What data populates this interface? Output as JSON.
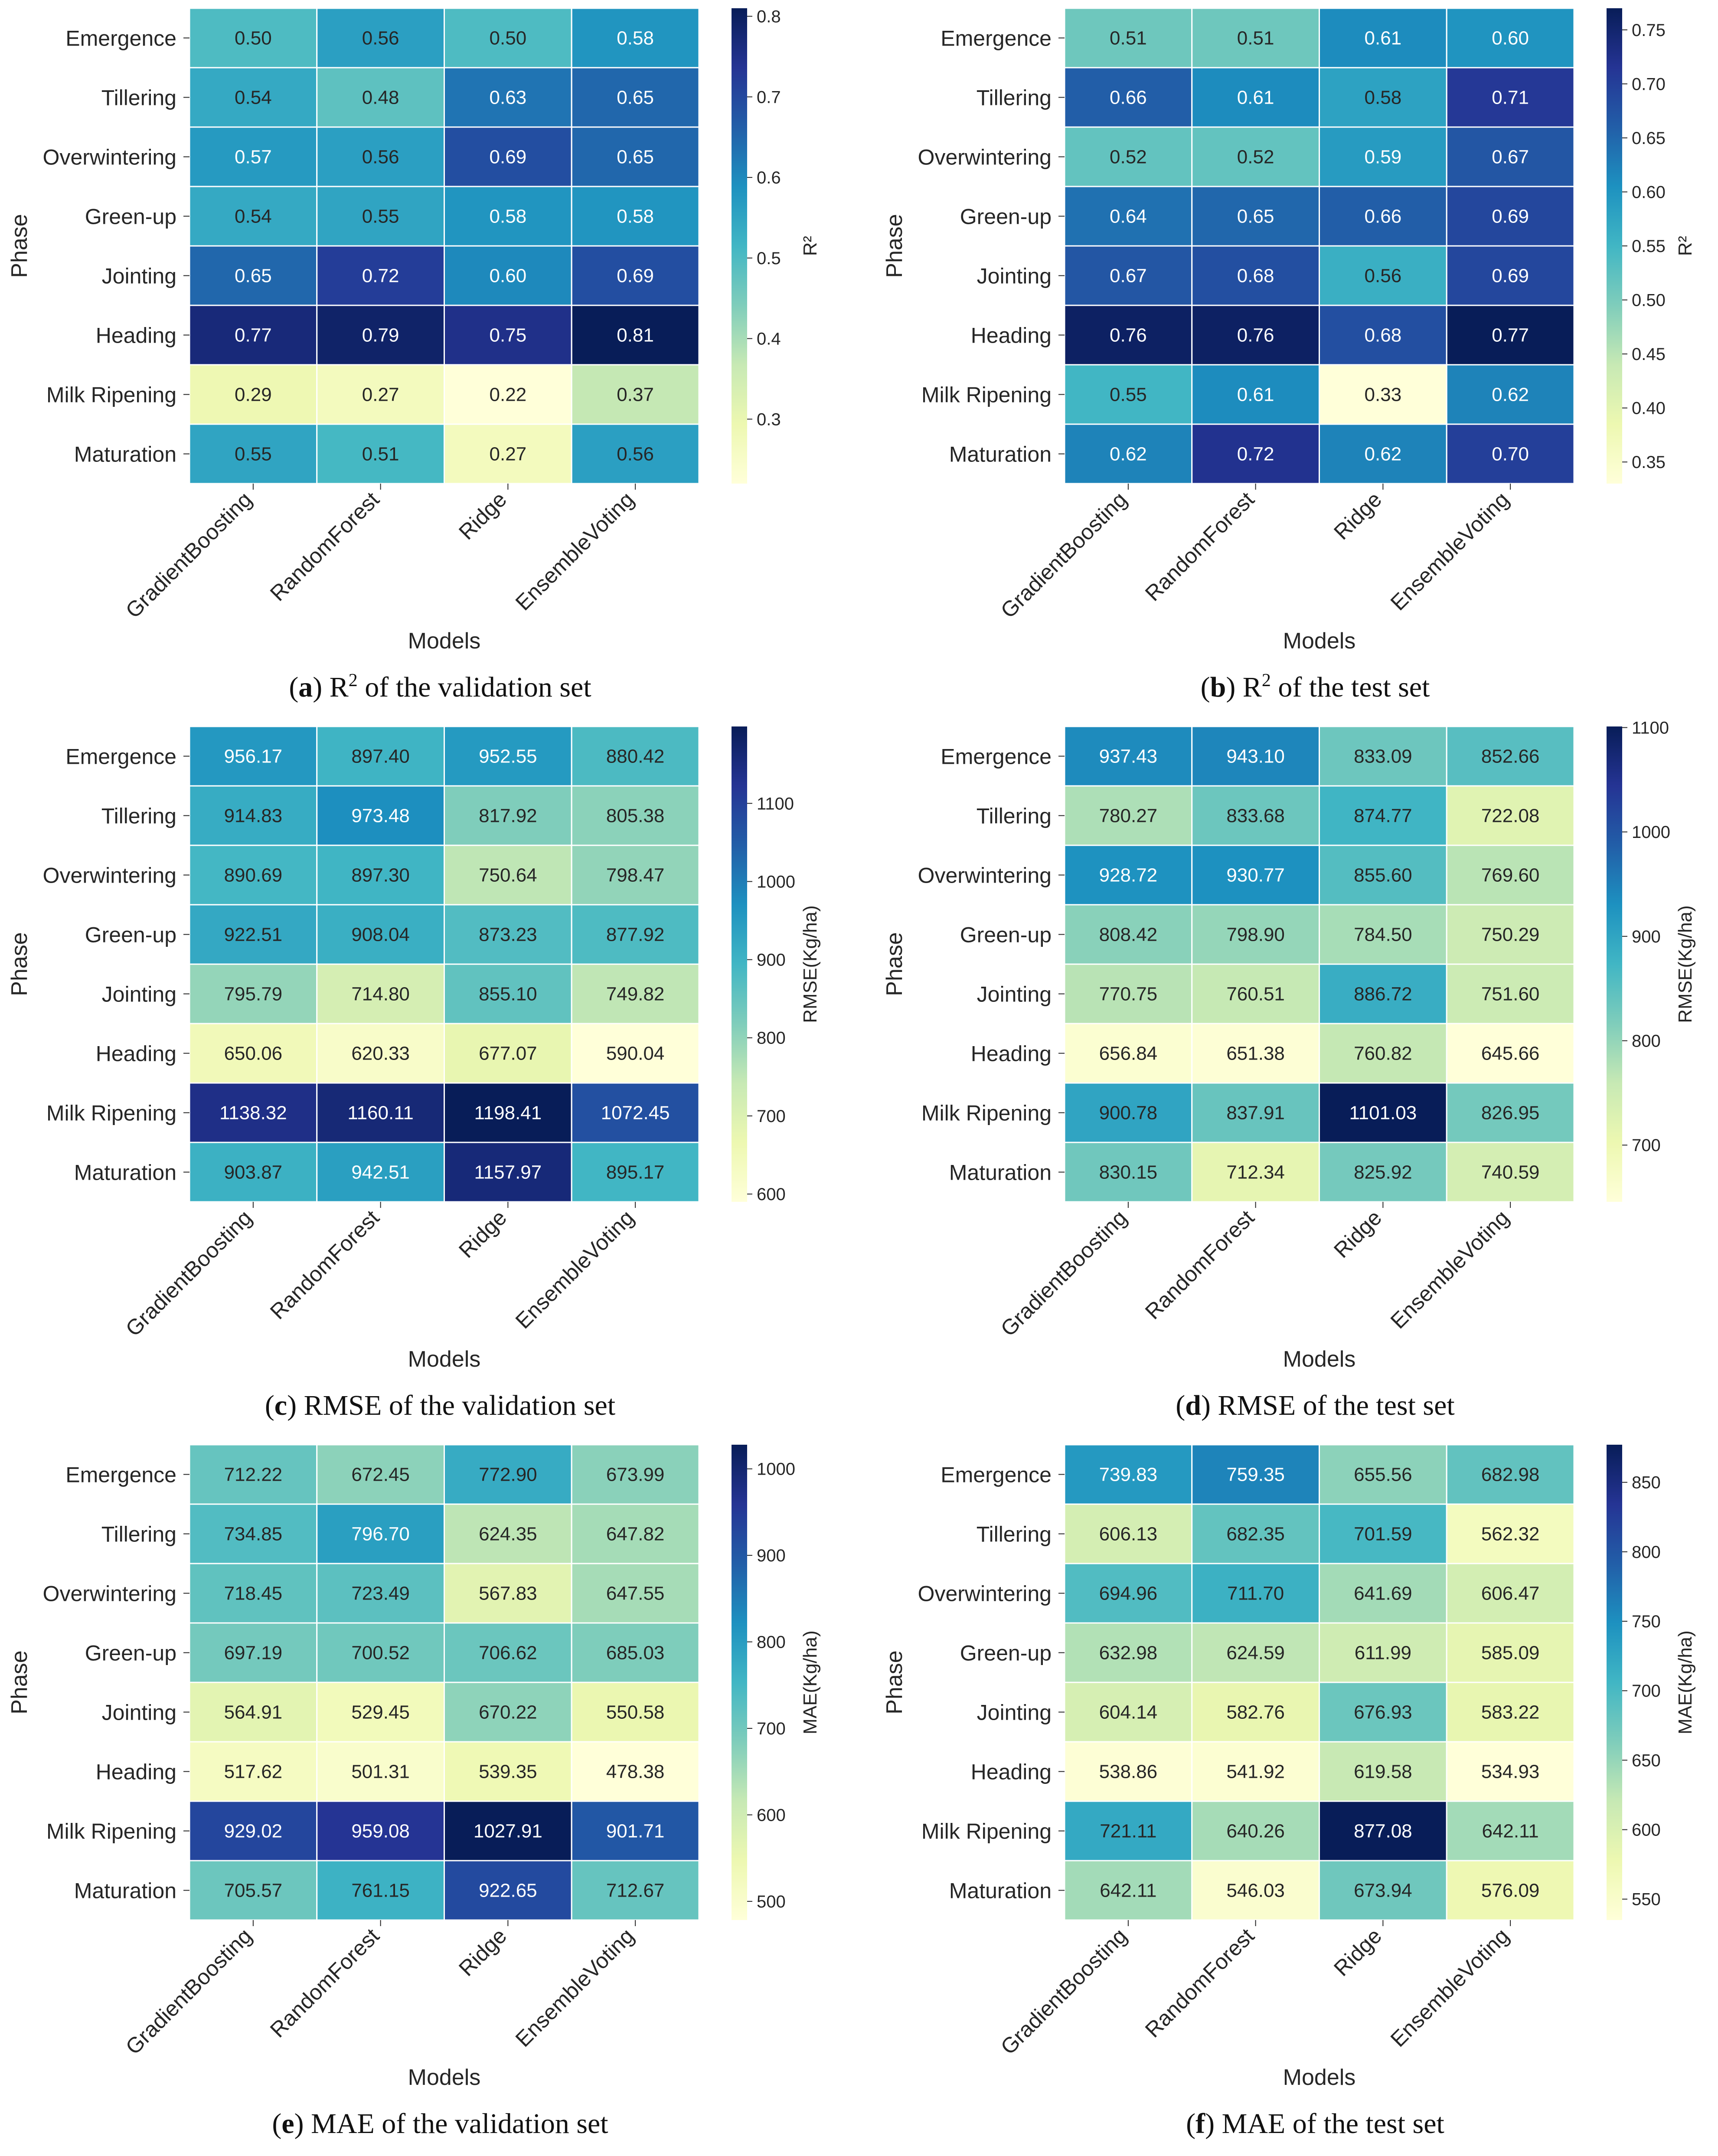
{
  "figure": {
    "colors": [
      "#ffffd9",
      "#edf8b1",
      "#c7e9b4",
      "#7fcdbb",
      "#41b6c4",
      "#1d91c0",
      "#225ea8",
      "#253494",
      "#081d58"
    ],
    "x_categories": [
      "GradientBoosting",
      "RandomForest",
      "Ridge",
      "EnsembleVoting"
    ],
    "y_categories": [
      "Emergence",
      "Tillering",
      "Overwintering",
      "Green-up",
      "Jointing",
      "Heading",
      "Milk Ripening",
      "Maturation"
    ]
  },
  "chart_data": [
    {
      "type": "heatmap",
      "panel_letter": "a",
      "caption_sup": "2",
      "caption_prefix": "R",
      "caption_rest": " of the validation set",
      "xlabel": "Models",
      "ylabel": "Phase",
      "colorbar_label": "R²",
      "colorbar_ticks": [
        "0.3",
        "0.4",
        "0.5",
        "0.6",
        "0.7",
        "0.8"
      ],
      "vmin": 0.22,
      "vmax": 0.81,
      "values": [
        [
          0.5,
          0.56,
          0.5,
          0.58
        ],
        [
          0.54,
          0.48,
          0.63,
          0.65
        ],
        [
          0.57,
          0.56,
          0.69,
          0.65
        ],
        [
          0.54,
          0.55,
          0.58,
          0.58
        ],
        [
          0.65,
          0.72,
          0.6,
          0.69
        ],
        [
          0.77,
          0.79,
          0.75,
          0.81
        ],
        [
          0.29,
          0.27,
          0.22,
          0.37
        ],
        [
          0.55,
          0.51,
          0.27,
          0.56
        ]
      ],
      "labels": [
        [
          "0.50",
          "0.56",
          "0.50",
          "0.58"
        ],
        [
          "0.54",
          "0.48",
          "0.63",
          "0.65"
        ],
        [
          "0.57",
          "0.56",
          "0.69",
          "0.65"
        ],
        [
          "0.54",
          "0.55",
          "0.58",
          "0.58"
        ],
        [
          "0.65",
          "0.72",
          "0.60",
          "0.69"
        ],
        [
          "0.77",
          "0.79",
          "0.75",
          "0.81"
        ],
        [
          "0.29",
          "0.27",
          "0.22",
          "0.37"
        ],
        [
          "0.55",
          "0.51",
          "0.27",
          "0.56"
        ]
      ]
    },
    {
      "type": "heatmap",
      "panel_letter": "b",
      "caption_sup": "2",
      "caption_prefix": "R",
      "caption_rest": " of the test set",
      "xlabel": "Models",
      "ylabel": "Phase",
      "colorbar_label": "R²",
      "colorbar_ticks": [
        "0.35",
        "0.40",
        "0.45",
        "0.50",
        "0.55",
        "0.60",
        "0.65",
        "0.70",
        "0.75"
      ],
      "vmin": 0.33,
      "vmax": 0.77,
      "values": [
        [
          0.51,
          0.51,
          0.61,
          0.6
        ],
        [
          0.66,
          0.61,
          0.58,
          0.71
        ],
        [
          0.52,
          0.52,
          0.59,
          0.67
        ],
        [
          0.64,
          0.65,
          0.66,
          0.69
        ],
        [
          0.67,
          0.68,
          0.56,
          0.69
        ],
        [
          0.76,
          0.76,
          0.68,
          0.77
        ],
        [
          0.55,
          0.61,
          0.33,
          0.62
        ],
        [
          0.62,
          0.72,
          0.62,
          0.7
        ]
      ],
      "labels": [
        [
          "0.51",
          "0.51",
          "0.61",
          "0.60"
        ],
        [
          "0.66",
          "0.61",
          "0.58",
          "0.71"
        ],
        [
          "0.52",
          "0.52",
          "0.59",
          "0.67"
        ],
        [
          "0.64",
          "0.65",
          "0.66",
          "0.69"
        ],
        [
          "0.67",
          "0.68",
          "0.56",
          "0.69"
        ],
        [
          "0.76",
          "0.76",
          "0.68",
          "0.77"
        ],
        [
          "0.55",
          "0.61",
          "0.33",
          "0.62"
        ],
        [
          "0.62",
          "0.72",
          "0.62",
          "0.70"
        ]
      ]
    },
    {
      "type": "heatmap",
      "panel_letter": "c",
      "caption_sup": "",
      "caption_prefix": "RMSE",
      "caption_rest": " of the validation set",
      "xlabel": "Models",
      "ylabel": "Phase",
      "colorbar_label": "RMSE(Kg/ha)",
      "colorbar_ticks": [
        "600",
        "700",
        "800",
        "900",
        "1000",
        "1100"
      ],
      "vmin": 590.04,
      "vmax": 1198.41,
      "values": [
        [
          956.17,
          897.4,
          952.55,
          880.42
        ],
        [
          914.83,
          973.48,
          817.92,
          805.38
        ],
        [
          890.69,
          897.3,
          750.64,
          798.47
        ],
        [
          922.51,
          908.04,
          873.23,
          877.92
        ],
        [
          795.79,
          714.8,
          855.1,
          749.82
        ],
        [
          650.06,
          620.33,
          677.07,
          590.04
        ],
        [
          1138.32,
          1160.11,
          1198.41,
          1072.45
        ],
        [
          903.87,
          942.51,
          1157.97,
          895.17
        ]
      ],
      "labels": [
        [
          "956.17",
          "897.40",
          "952.55",
          "880.42"
        ],
        [
          "914.83",
          "973.48",
          "817.92",
          "805.38"
        ],
        [
          "890.69",
          "897.30",
          "750.64",
          "798.47"
        ],
        [
          "922.51",
          "908.04",
          "873.23",
          "877.92"
        ],
        [
          "795.79",
          "714.80",
          "855.10",
          "749.82"
        ],
        [
          "650.06",
          "620.33",
          "677.07",
          "590.04"
        ],
        [
          "1138.32",
          "1160.11",
          "1198.41",
          "1072.45"
        ],
        [
          "903.87",
          "942.51",
          "1157.97",
          "895.17"
        ]
      ]
    },
    {
      "type": "heatmap",
      "panel_letter": "d",
      "caption_sup": "",
      "caption_prefix": "RMSE",
      "caption_rest": " of the test set",
      "xlabel": "Models",
      "ylabel": "Phase",
      "colorbar_label": "RMSE(Kg/ha)",
      "colorbar_ticks": [
        "700",
        "800",
        "900",
        "1000",
        "1100"
      ],
      "vmin": 645.66,
      "vmax": 1101.03,
      "values": [
        [
          937.43,
          943.1,
          833.09,
          852.66
        ],
        [
          780.27,
          833.68,
          874.77,
          722.08
        ],
        [
          928.72,
          930.77,
          855.6,
          769.6
        ],
        [
          808.42,
          798.9,
          784.5,
          750.29
        ],
        [
          770.75,
          760.51,
          886.72,
          751.6
        ],
        [
          656.84,
          651.38,
          760.82,
          645.66
        ],
        [
          900.78,
          837.91,
          1101.03,
          826.95
        ],
        [
          830.15,
          712.34,
          825.92,
          740.59
        ]
      ],
      "labels": [
        [
          "937.43",
          "943.10",
          "833.09",
          "852.66"
        ],
        [
          "780.27",
          "833.68",
          "874.77",
          "722.08"
        ],
        [
          "928.72",
          "930.77",
          "855.60",
          "769.60"
        ],
        [
          "808.42",
          "798.90",
          "784.50",
          "750.29"
        ],
        [
          "770.75",
          "760.51",
          "886.72",
          "751.60"
        ],
        [
          "656.84",
          "651.38",
          "760.82",
          "645.66"
        ],
        [
          "900.78",
          "837.91",
          "1101.03",
          "826.95"
        ],
        [
          "830.15",
          "712.34",
          "825.92",
          "740.59"
        ]
      ]
    },
    {
      "type": "heatmap",
      "panel_letter": "e",
      "caption_sup": "",
      "caption_prefix": "MAE",
      "caption_rest": " of the validation set",
      "xlabel": "Models",
      "ylabel": "Phase",
      "colorbar_label": "MAE(Kg/ha)",
      "colorbar_ticks": [
        "500",
        "600",
        "700",
        "800",
        "900",
        "1000"
      ],
      "vmin": 478.38,
      "vmax": 1027.91,
      "values": [
        [
          712.22,
          672.45,
          772.9,
          673.99
        ],
        [
          734.85,
          796.7,
          624.35,
          647.82
        ],
        [
          718.45,
          723.49,
          567.83,
          647.55
        ],
        [
          697.19,
          700.52,
          706.62,
          685.03
        ],
        [
          564.91,
          529.45,
          670.22,
          550.58
        ],
        [
          517.62,
          501.31,
          539.35,
          478.38
        ],
        [
          929.02,
          959.08,
          1027.91,
          901.71
        ],
        [
          705.57,
          761.15,
          922.65,
          712.67
        ]
      ],
      "labels": [
        [
          "712.22",
          "672.45",
          "772.90",
          "673.99"
        ],
        [
          "734.85",
          "796.70",
          "624.35",
          "647.82"
        ],
        [
          "718.45",
          "723.49",
          "567.83",
          "647.55"
        ],
        [
          "697.19",
          "700.52",
          "706.62",
          "685.03"
        ],
        [
          "564.91",
          "529.45",
          "670.22",
          "550.58"
        ],
        [
          "517.62",
          "501.31",
          "539.35",
          "478.38"
        ],
        [
          "929.02",
          "959.08",
          "1027.91",
          "901.71"
        ],
        [
          "705.57",
          "761.15",
          "922.65",
          "712.67"
        ]
      ]
    },
    {
      "type": "heatmap",
      "panel_letter": "f",
      "caption_sup": "",
      "caption_prefix": "MAE",
      "caption_rest": " of the test set",
      "xlabel": "Models",
      "ylabel": "Phase",
      "colorbar_label": "MAE(Kg/ha)",
      "colorbar_ticks": [
        "550",
        "600",
        "650",
        "700",
        "750",
        "800",
        "850"
      ],
      "vmin": 534.93,
      "vmax": 877.08,
      "values": [
        [
          739.83,
          759.35,
          655.56,
          682.98
        ],
        [
          606.13,
          682.35,
          701.59,
          562.32
        ],
        [
          694.96,
          711.7,
          641.69,
          606.47
        ],
        [
          632.98,
          624.59,
          611.99,
          585.09
        ],
        [
          604.14,
          582.76,
          676.93,
          583.22
        ],
        [
          538.86,
          541.92,
          619.58,
          534.93
        ],
        [
          721.11,
          640.26,
          877.08,
          642.11
        ],
        [
          642.11,
          546.03,
          673.94,
          576.09
        ]
      ],
      "labels": [
        [
          "739.83",
          "759.35",
          "655.56",
          "682.98"
        ],
        [
          "606.13",
          "682.35",
          "701.59",
          "562.32"
        ],
        [
          "694.96",
          "711.70",
          "641.69",
          "606.47"
        ],
        [
          "632.98",
          "624.59",
          "611.99",
          "585.09"
        ],
        [
          "604.14",
          "582.76",
          "676.93",
          "583.22"
        ],
        [
          "538.86",
          "541.92",
          "619.58",
          "534.93"
        ],
        [
          "721.11",
          "640.26",
          "877.08",
          "642.11"
        ],
        [
          "642.11",
          "546.03",
          "673.94",
          "576.09"
        ]
      ]
    }
  ]
}
